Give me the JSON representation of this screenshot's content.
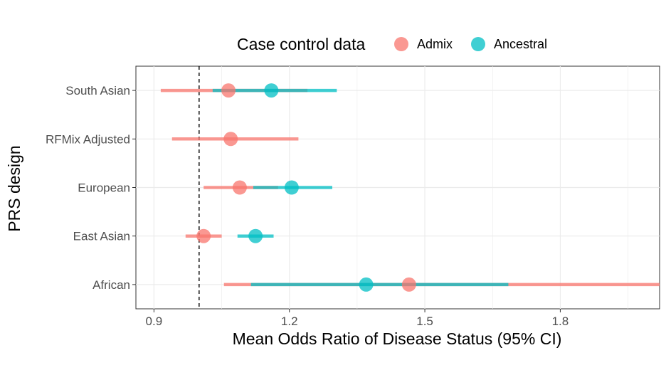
{
  "chart_data": {
    "type": "scatter",
    "subtype": "dot-and-whisker (odds ratio with 95% CI)",
    "title": "",
    "xlabel": "Mean Odds Ratio of Disease Status (95% CI)",
    "ylabel": "PRS design",
    "xlim": [
      0.86,
      2.02
    ],
    "xticks": [
      0.9,
      1.2,
      1.5,
      1.8
    ],
    "xtick_labels": [
      "0.9",
      "1.2",
      "1.5",
      "1.8"
    ],
    "reference_line": 1.0,
    "grid": true,
    "legend_position": "top",
    "legend": {
      "title": "Case control data",
      "items": [
        {
          "label": "Admix",
          "color": "#F8766D"
        },
        {
          "label": "Ancestral",
          "color": "#00BFC4"
        }
      ]
    },
    "categories": [
      "South Asian",
      "RFMix Adjusted",
      "European",
      "East Asian",
      "African"
    ],
    "series": [
      {
        "name": "Admix",
        "color": "#F8766D",
        "points": [
          {
            "category": "South Asian",
            "value": 1.065,
            "low": 0.915,
            "high": 1.24
          },
          {
            "category": "RFMix Adjusted",
            "value": 1.07,
            "low": 0.94,
            "high": 1.22
          },
          {
            "category": "European",
            "value": 1.09,
            "low": 1.01,
            "high": 1.175
          },
          {
            "category": "East Asian",
            "value": 1.01,
            "low": 0.97,
            "high": 1.05
          },
          {
            "category": "African",
            "value": 1.465,
            "low": 1.055,
            "high": 2.02
          }
        ]
      },
      {
        "name": "Ancestral",
        "color": "#00BFC4",
        "points": [
          {
            "category": "South Asian",
            "value": 1.16,
            "low": 1.03,
            "high": 1.305
          },
          {
            "category": "European",
            "value": 1.205,
            "low": 1.12,
            "high": 1.295
          },
          {
            "category": "East Asian",
            "value": 1.125,
            "low": 1.085,
            "high": 1.165
          },
          {
            "category": "African",
            "value": 1.37,
            "low": 1.115,
            "high": 1.685
          }
        ]
      }
    ]
  }
}
